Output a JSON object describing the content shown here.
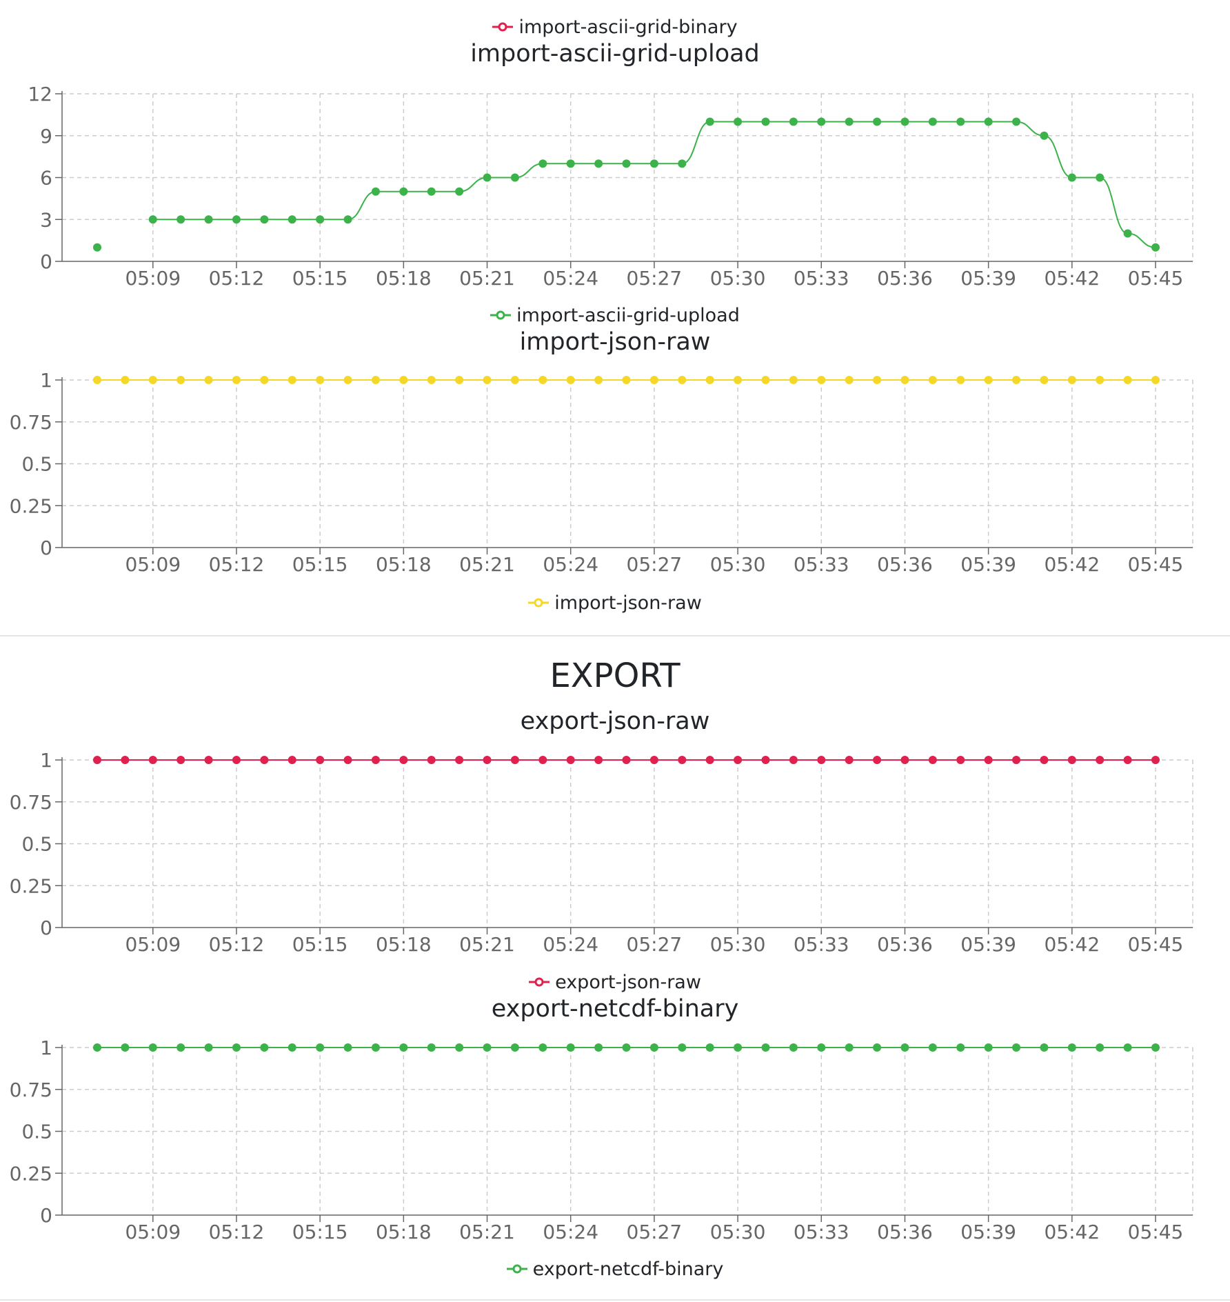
{
  "import_section": {
    "top_legend": {
      "label": "import-ascii-grid-binary",
      "color": "#e0204f"
    }
  },
  "export_section": {
    "title": "EXPORT"
  },
  "x_ticks": [
    "05:09",
    "05:12",
    "05:15",
    "05:18",
    "05:21",
    "05:24",
    "05:27",
    "05:30",
    "05:33",
    "05:36",
    "05:39",
    "05:42",
    "05:45"
  ],
  "chart_data": [
    {
      "type": "line",
      "title": "import-ascii-grid-upload",
      "legend": "import-ascii-grid-upload",
      "color": "#3cb24a",
      "ylim": [
        0,
        12
      ],
      "yticks": [
        "0",
        "3",
        "6",
        "9",
        "12"
      ],
      "xlim": [
        "05:07",
        "05:45"
      ],
      "grid": true,
      "smooth": true,
      "series": [
        {
          "name": "import-ascii-grid-upload",
          "points": [
            {
              "x": "05:07",
              "y": 1
            },
            {
              "x": "05:09",
              "y": 3
            },
            {
              "x": "05:10",
              "y": 3
            },
            {
              "x": "05:11",
              "y": 3
            },
            {
              "x": "05:12",
              "y": 3
            },
            {
              "x": "05:13",
              "y": 3
            },
            {
              "x": "05:14",
              "y": 3
            },
            {
              "x": "05:15",
              "y": 3
            },
            {
              "x": "05:16",
              "y": 3
            },
            {
              "x": "05:17",
              "y": 5
            },
            {
              "x": "05:18",
              "y": 5
            },
            {
              "x": "05:19",
              "y": 5
            },
            {
              "x": "05:20",
              "y": 5
            },
            {
              "x": "05:21",
              "y": 6
            },
            {
              "x": "05:22",
              "y": 6
            },
            {
              "x": "05:23",
              "y": 7
            },
            {
              "x": "05:24",
              "y": 7
            },
            {
              "x": "05:25",
              "y": 7
            },
            {
              "x": "05:26",
              "y": 7
            },
            {
              "x": "05:27",
              "y": 7
            },
            {
              "x": "05:28",
              "y": 7
            },
            {
              "x": "05:29",
              "y": 10
            },
            {
              "x": "05:30",
              "y": 10
            },
            {
              "x": "05:31",
              "y": 10
            },
            {
              "x": "05:32",
              "y": 10
            },
            {
              "x": "05:33",
              "y": 10
            },
            {
              "x": "05:34",
              "y": 10
            },
            {
              "x": "05:35",
              "y": 10
            },
            {
              "x": "05:36",
              "y": 10
            },
            {
              "x": "05:37",
              "y": 10
            },
            {
              "x": "05:38",
              "y": 10
            },
            {
              "x": "05:39",
              "y": 10
            },
            {
              "x": "05:40",
              "y": 10
            },
            {
              "x": "05:41",
              "y": 9
            },
            {
              "x": "05:42",
              "y": 6
            },
            {
              "x": "05:43",
              "y": 6
            },
            {
              "x": "05:44",
              "y": 2
            },
            {
              "x": "05:45",
              "y": 1
            }
          ]
        }
      ]
    },
    {
      "type": "line",
      "title": "import-json-raw",
      "legend": "import-json-raw",
      "color": "#f5d727",
      "ylim": [
        0,
        1
      ],
      "yticks": [
        "0",
        "0.25",
        "0.5",
        "0.75",
        "1"
      ],
      "xlim": [
        "05:07",
        "05:45"
      ],
      "grid": true,
      "smooth": false,
      "series": [
        {
          "name": "import-json-raw",
          "constant": 1,
          "from": "05:07",
          "to": "05:45",
          "step_minutes": 1
        }
      ]
    },
    {
      "type": "line",
      "title": "export-json-raw",
      "legend": "export-json-raw",
      "color": "#e0204f",
      "ylim": [
        0,
        1
      ],
      "yticks": [
        "0",
        "0.25",
        "0.5",
        "0.75",
        "1"
      ],
      "xlim": [
        "05:07",
        "05:45"
      ],
      "grid": true,
      "smooth": false,
      "series": [
        {
          "name": "export-json-raw",
          "constant": 1,
          "from": "05:07",
          "to": "05:45",
          "step_minutes": 1
        }
      ]
    },
    {
      "type": "line",
      "title": "export-netcdf-binary",
      "legend": "export-netcdf-binary",
      "color": "#3cb24a",
      "ylim": [
        0,
        1
      ],
      "yticks": [
        "0",
        "0.25",
        "0.5",
        "0.75",
        "1"
      ],
      "xlim": [
        "05:07",
        "05:45"
      ],
      "grid": true,
      "smooth": false,
      "series": [
        {
          "name": "export-netcdf-binary",
          "constant": 1,
          "from": "05:07",
          "to": "05:45",
          "step_minutes": 1
        }
      ]
    }
  ]
}
